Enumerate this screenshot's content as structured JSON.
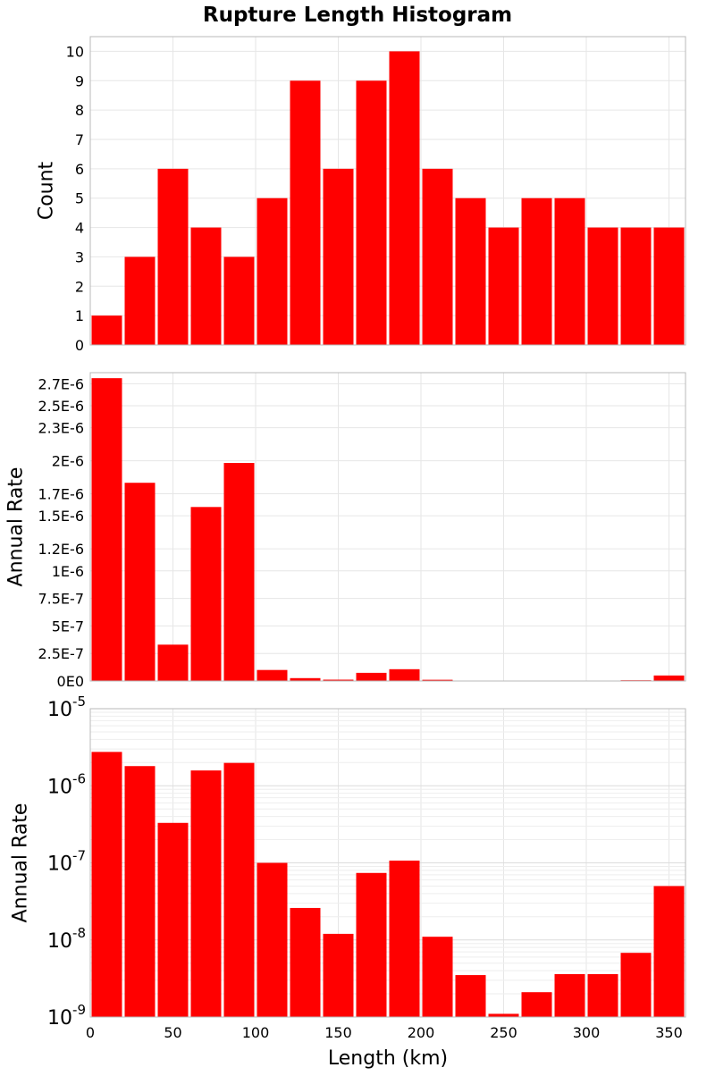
{
  "title": "Rupture Length Histogram",
  "chart_data": {
    "type": "bar",
    "title": "Rupture Length Histogram",
    "xlabel": "Length (km)",
    "xlim": [
      0,
      360
    ],
    "x_ticks": [
      "0",
      "50",
      "100",
      "150",
      "200",
      "250",
      "300",
      "350"
    ],
    "bin_width": 20,
    "x": [
      10,
      30,
      50,
      70,
      90,
      110,
      130,
      150,
      170,
      190,
      210,
      230,
      250,
      270,
      290,
      310,
      330,
      350
    ],
    "bar_color": "#ff0000",
    "grid": true,
    "panels": [
      {
        "ylabel": "Count",
        "yscale": "linear",
        "ylim": [
          0,
          10.5
        ],
        "y_ticks": [
          "0",
          "1",
          "2",
          "3",
          "4",
          "5",
          "6",
          "7",
          "8",
          "9",
          "10"
        ],
        "values": [
          1,
          3,
          6,
          4,
          3,
          5,
          9,
          6,
          9,
          10,
          6,
          5,
          4,
          5,
          5,
          4,
          4,
          4
        ]
      },
      {
        "ylabel": "Annual Rate",
        "yscale": "linear",
        "ylim": [
          0,
          2.8e-06
        ],
        "y_ticks": [
          "0E0",
          "2.5E-7",
          "5E-7",
          "7.5E-7",
          "1E-6",
          "1.2E-6",
          "1.5E-6",
          "1.7E-6",
          "2E-6",
          "2.3E-6",
          "2.5E-6",
          "2.7E-6"
        ],
        "values": [
          2.75e-06,
          1.8e-06,
          3.3e-07,
          1.58e-06,
          1.98e-06,
          1e-07,
          2.6e-08,
          1.2e-08,
          7.4e-08,
          1.07e-07,
          1.1e-08,
          3.5e-09,
          1.1e-09,
          2.1e-09,
          3.6e-09,
          3.6e-09,
          6.8e-09,
          5e-08
        ]
      },
      {
        "ylabel": "Annual Rate",
        "yscale": "log",
        "ylim": [
          1e-09,
          1e-05
        ],
        "y_ticks": [
          {
            "base": "10",
            "exp": "-9"
          },
          {
            "base": "10",
            "exp": "-8"
          },
          {
            "base": "10",
            "exp": "-7"
          },
          {
            "base": "10",
            "exp": "-6"
          },
          {
            "base": "10",
            "exp": "-5"
          }
        ],
        "values": [
          2.75e-06,
          1.8e-06,
          3.3e-07,
          1.58e-06,
          1.98e-06,
          1e-07,
          2.6e-08,
          1.2e-08,
          7.4e-08,
          1.07e-07,
          1.1e-08,
          3.5e-09,
          1.1e-09,
          2.1e-09,
          3.6e-09,
          3.6e-09,
          6.8e-09,
          5e-08
        ]
      }
    ]
  }
}
